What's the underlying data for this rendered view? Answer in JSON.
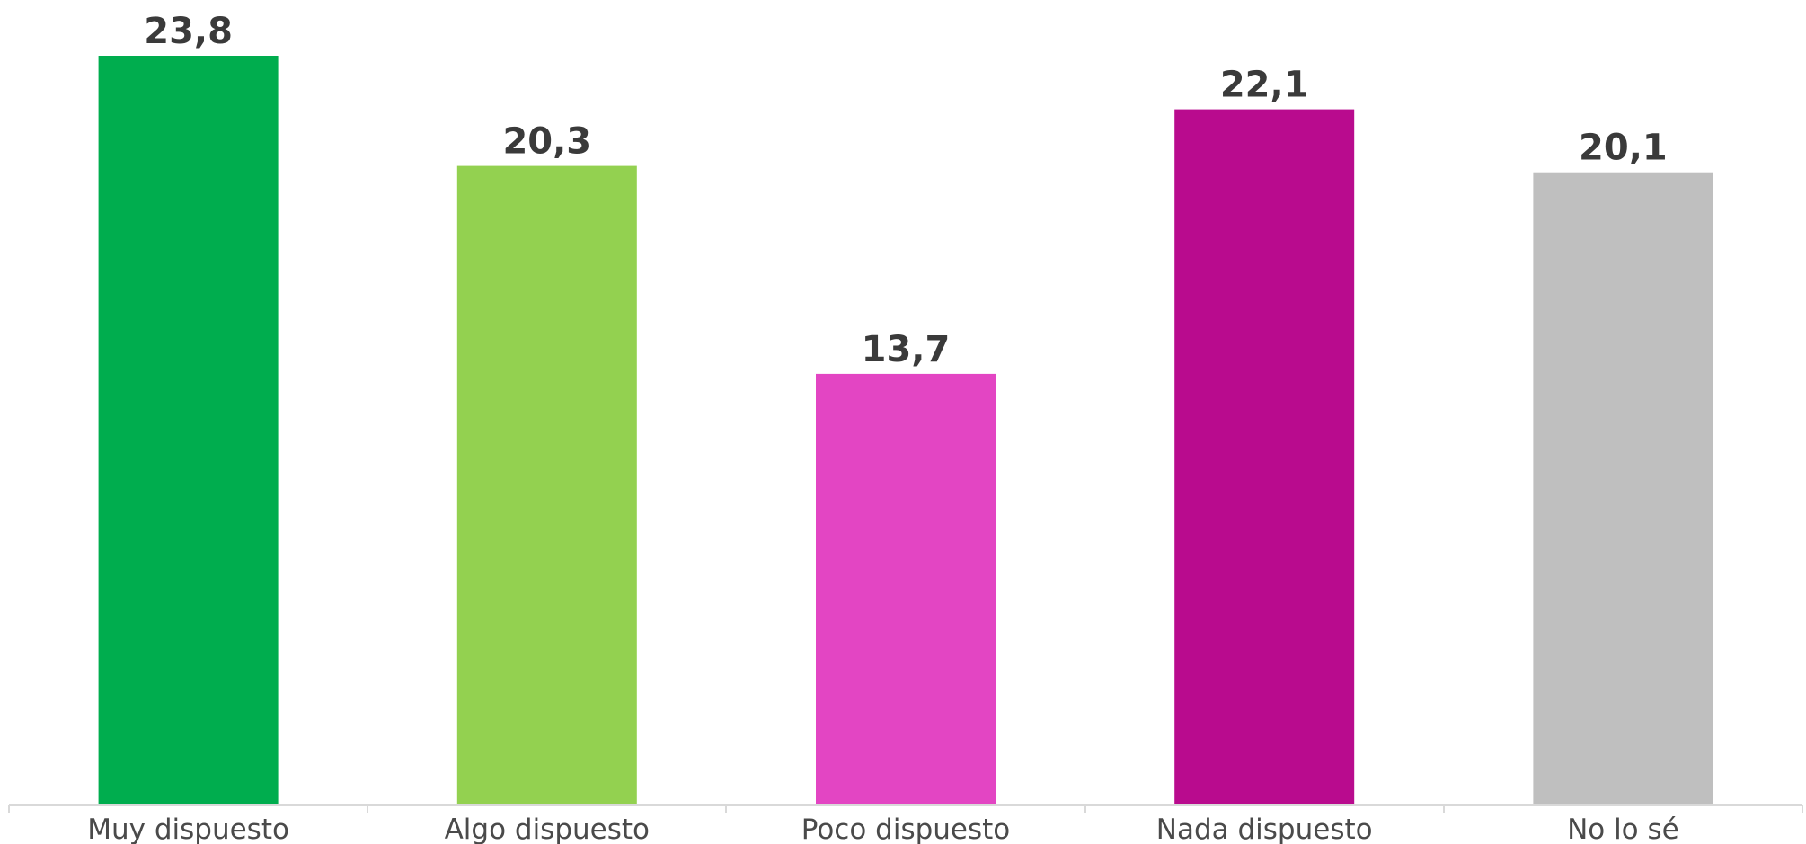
{
  "chart_data": {
    "type": "bar",
    "categories": [
      "Muy dispuesto",
      "Algo dispuesto",
      "Poco dispuesto",
      "Nada dispuesto",
      "No lo sé"
    ],
    "values": [
      23.8,
      20.3,
      13.7,
      22.1,
      20.1
    ],
    "value_labels": [
      "23,8",
      "20,3",
      "13,7",
      "22,1",
      "20,1"
    ],
    "colors": [
      "#00ad4e",
      "#93d150",
      "#e345c3",
      "#b90b8e",
      "#bfbfbf"
    ],
    "ylim": [
      0,
      23.8
    ],
    "grid": false,
    "legend": "none",
    "title": "",
    "xlabel": "",
    "ylabel": ""
  }
}
